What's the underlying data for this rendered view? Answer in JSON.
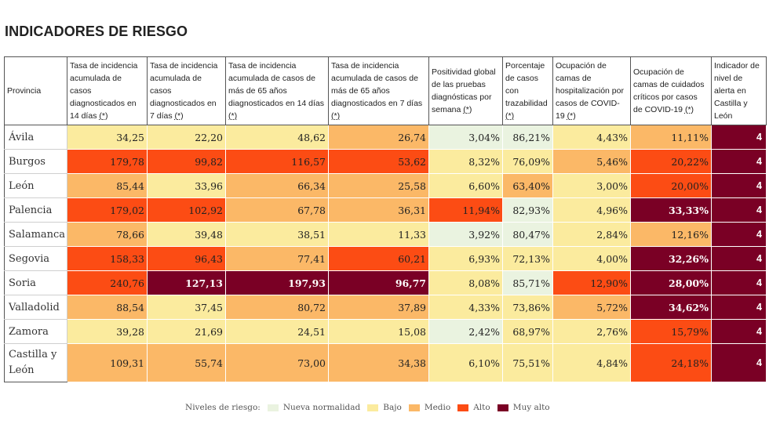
{
  "page_title": "INDICADORES DE RIESGO",
  "colors": {
    "nueva_normalidad": "#eaf3e0",
    "bajo": "#fbeb9e",
    "medio": "#fbb867",
    "alto": "#fc4c14",
    "muy_alto": "#7a0025",
    "white": "#ffffff"
  },
  "table": {
    "headers": [
      {
        "text": "Provincia",
        "asterisk": ""
      },
      {
        "text": "Tasa de incidencia acumulada de casos diagnosticados en 14 días",
        "asterisk": "(*)"
      },
      {
        "text": "Tasa de incidencia acumulada de casos diagnosticados en 7 días",
        "asterisk": "(*)"
      },
      {
        "text": "Tasa de incidencia acumulada de casos de más de 65 años diagnosticados en 14 días",
        "asterisk": "(*)"
      },
      {
        "text": "Tasa de incidencia acumulada de casos de más de 65 años diagnosticados en 7 días",
        "asterisk": "(*)"
      },
      {
        "text": "Positividad global de las pruebas diagnósticas por semana",
        "asterisk": "(*)"
      },
      {
        "text": "Porcentaje de casos con trazabilidad",
        "asterisk": "(*)"
      },
      {
        "text": "Ocupación de camas de hospitalización por casos de COVID-19",
        "asterisk": "(*)"
      },
      {
        "text": "Ocupación de camas de cuidados críticos por casos de COVID-19",
        "asterisk": "(*)"
      },
      {
        "text": "Indicador de nivel de alerta en Castilla y León",
        "asterisk": ""
      }
    ],
    "rows": [
      {
        "provincia": "Ávila",
        "cells": [
          {
            "value": "34,25",
            "level": "bajo"
          },
          {
            "value": "22,20",
            "level": "bajo"
          },
          {
            "value": "48,62",
            "level": "bajo"
          },
          {
            "value": "26,74",
            "level": "medio"
          },
          {
            "value": "3,04%",
            "level": "nueva_normalidad"
          },
          {
            "value": "86,21%",
            "level": "nueva_normalidad"
          },
          {
            "value": "4,43%",
            "level": "bajo"
          },
          {
            "value": "11,11%",
            "level": "medio"
          },
          {
            "value": "4",
            "level": "muy_alto"
          }
        ]
      },
      {
        "provincia": "Burgos",
        "cells": [
          {
            "value": "179,78",
            "level": "alto"
          },
          {
            "value": "99,82",
            "level": "alto"
          },
          {
            "value": "116,57",
            "level": "alto"
          },
          {
            "value": "53,62",
            "level": "alto"
          },
          {
            "value": "8,32%",
            "level": "bajo"
          },
          {
            "value": "76,09%",
            "level": "bajo"
          },
          {
            "value": "5,46%",
            "level": "medio"
          },
          {
            "value": "20,22%",
            "level": "alto"
          },
          {
            "value": "4",
            "level": "muy_alto"
          }
        ]
      },
      {
        "provincia": "León",
        "cells": [
          {
            "value": "85,44",
            "level": "medio"
          },
          {
            "value": "33,96",
            "level": "bajo"
          },
          {
            "value": "66,34",
            "level": "medio"
          },
          {
            "value": "25,58",
            "level": "medio"
          },
          {
            "value": "6,60%",
            "level": "bajo"
          },
          {
            "value": "63,40%",
            "level": "medio"
          },
          {
            "value": "3,00%",
            "level": "bajo"
          },
          {
            "value": "20,00%",
            "level": "alto"
          },
          {
            "value": "4",
            "level": "muy_alto"
          }
        ]
      },
      {
        "provincia": "Palencia",
        "cells": [
          {
            "value": "179,02",
            "level": "alto"
          },
          {
            "value": "102,92",
            "level": "alto"
          },
          {
            "value": "67,78",
            "level": "medio"
          },
          {
            "value": "36,31",
            "level": "medio"
          },
          {
            "value": "11,94%",
            "level": "alto"
          },
          {
            "value": "82,93%",
            "level": "nueva_normalidad"
          },
          {
            "value": "4,96%",
            "level": "bajo"
          },
          {
            "value": "33,33%",
            "level": "muy_alto"
          },
          {
            "value": "4",
            "level": "muy_alto"
          }
        ]
      },
      {
        "provincia": "Salamanca",
        "cells": [
          {
            "value": "78,66",
            "level": "medio"
          },
          {
            "value": "39,48",
            "level": "bajo"
          },
          {
            "value": "38,51",
            "level": "bajo"
          },
          {
            "value": "11,33",
            "level": "bajo"
          },
          {
            "value": "3,92%",
            "level": "nueva_normalidad"
          },
          {
            "value": "80,47%",
            "level": "nueva_normalidad"
          },
          {
            "value": "2,84%",
            "level": "bajo"
          },
          {
            "value": "12,16%",
            "level": "medio"
          },
          {
            "value": "4",
            "level": "muy_alto"
          }
        ]
      },
      {
        "provincia": "Segovia",
        "cells": [
          {
            "value": "158,33",
            "level": "alto"
          },
          {
            "value": "96,43",
            "level": "alto"
          },
          {
            "value": "77,41",
            "level": "medio"
          },
          {
            "value": "60,21",
            "level": "alto"
          },
          {
            "value": "6,93%",
            "level": "bajo"
          },
          {
            "value": "72,13%",
            "level": "bajo"
          },
          {
            "value": "4,00%",
            "level": "bajo"
          },
          {
            "value": "32,26%",
            "level": "muy_alto"
          },
          {
            "value": "4",
            "level": "muy_alto"
          }
        ]
      },
      {
        "provincia": "Soria",
        "cells": [
          {
            "value": "240,76",
            "level": "alto"
          },
          {
            "value": "127,13",
            "level": "muy_alto"
          },
          {
            "value": "197,93",
            "level": "muy_alto"
          },
          {
            "value": "96,77",
            "level": "muy_alto"
          },
          {
            "value": "8,08%",
            "level": "bajo"
          },
          {
            "value": "85,71%",
            "level": "nueva_normalidad"
          },
          {
            "value": "12,90%",
            "level": "alto"
          },
          {
            "value": "28,00%",
            "level": "muy_alto"
          },
          {
            "value": "4",
            "level": "muy_alto"
          }
        ]
      },
      {
        "provincia": "Valladolid",
        "cells": [
          {
            "value": "88,54",
            "level": "medio"
          },
          {
            "value": "37,45",
            "level": "bajo"
          },
          {
            "value": "80,72",
            "level": "medio"
          },
          {
            "value": "37,89",
            "level": "medio"
          },
          {
            "value": "4,33%",
            "level": "bajo"
          },
          {
            "value": "73,86%",
            "level": "bajo"
          },
          {
            "value": "5,72%",
            "level": "medio"
          },
          {
            "value": "34,62%",
            "level": "muy_alto"
          },
          {
            "value": "4",
            "level": "muy_alto"
          }
        ]
      },
      {
        "provincia": "Zamora",
        "cells": [
          {
            "value": "39,28",
            "level": "bajo"
          },
          {
            "value": "21,69",
            "level": "bajo"
          },
          {
            "value": "24,51",
            "level": "bajo"
          },
          {
            "value": "15,08",
            "level": "bajo"
          },
          {
            "value": "2,42%",
            "level": "nueva_normalidad"
          },
          {
            "value": "68,97%",
            "level": "bajo"
          },
          {
            "value": "2,76%",
            "level": "bajo"
          },
          {
            "value": "15,79%",
            "level": "alto"
          },
          {
            "value": "4",
            "level": "muy_alto"
          }
        ]
      },
      {
        "provincia": "Castilla y León",
        "cells": [
          {
            "value": "109,31",
            "level": "medio"
          },
          {
            "value": "55,74",
            "level": "medio"
          },
          {
            "value": "73,00",
            "level": "medio"
          },
          {
            "value": "34,38",
            "level": "medio"
          },
          {
            "value": "6,10%",
            "level": "bajo"
          },
          {
            "value": "75,51%",
            "level": "bajo"
          },
          {
            "value": "4,84%",
            "level": "bajo"
          },
          {
            "value": "24,18%",
            "level": "alto"
          },
          {
            "value": "4",
            "level": "muy_alto"
          }
        ]
      }
    ]
  },
  "legend": {
    "label": "Niveles de riesgo:",
    "items": [
      {
        "label": "Nueva normalidad",
        "level": "nueva_normalidad"
      },
      {
        "label": "Bajo",
        "level": "bajo"
      },
      {
        "label": "Medio",
        "level": "medio"
      },
      {
        "label": "Alto",
        "level": "alto"
      },
      {
        "label": "Muy alto",
        "level": "muy_alto"
      }
    ]
  }
}
